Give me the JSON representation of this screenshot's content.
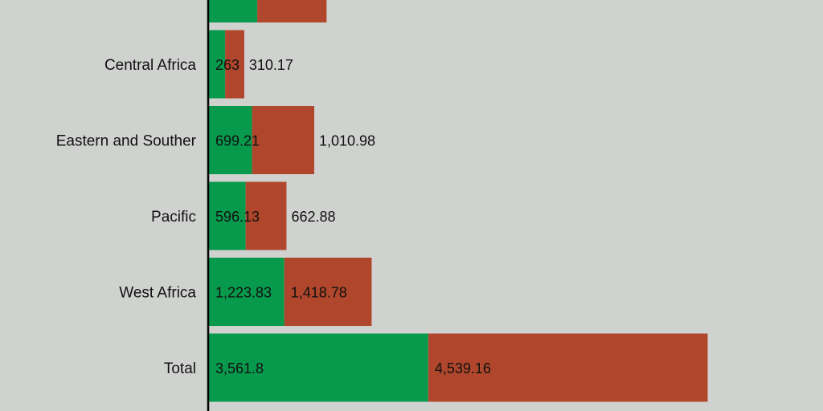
{
  "chart_data": {
    "type": "bar",
    "orientation": "horizontal",
    "stacked": true,
    "categories": [
      "",
      "Central Africa",
      "Eastern and Souther",
      "Pacific",
      "West Africa",
      "Total"
    ],
    "series": [
      {
        "color": "#079a4d",
        "values": [
          785,
          263,
          699.21,
          596.13,
          1223.83,
          3561.8
        ],
        "labels": [
          "",
          "263",
          "699.21",
          "596.13",
          "1,223.83",
          "3,561.8"
        ]
      },
      {
        "color": "#b0472c",
        "values": [
          1125,
          310.17,
          1010.98,
          662.88,
          1418.78,
          4539.16
        ],
        "labels": [
          "",
          "310.17",
          "1,010.98",
          "662.88",
          "1,418.78",
          "4,539.16"
        ]
      }
    ],
    "xlim": [
      0,
      10000
    ],
    "grid": false,
    "legend": "none"
  }
}
